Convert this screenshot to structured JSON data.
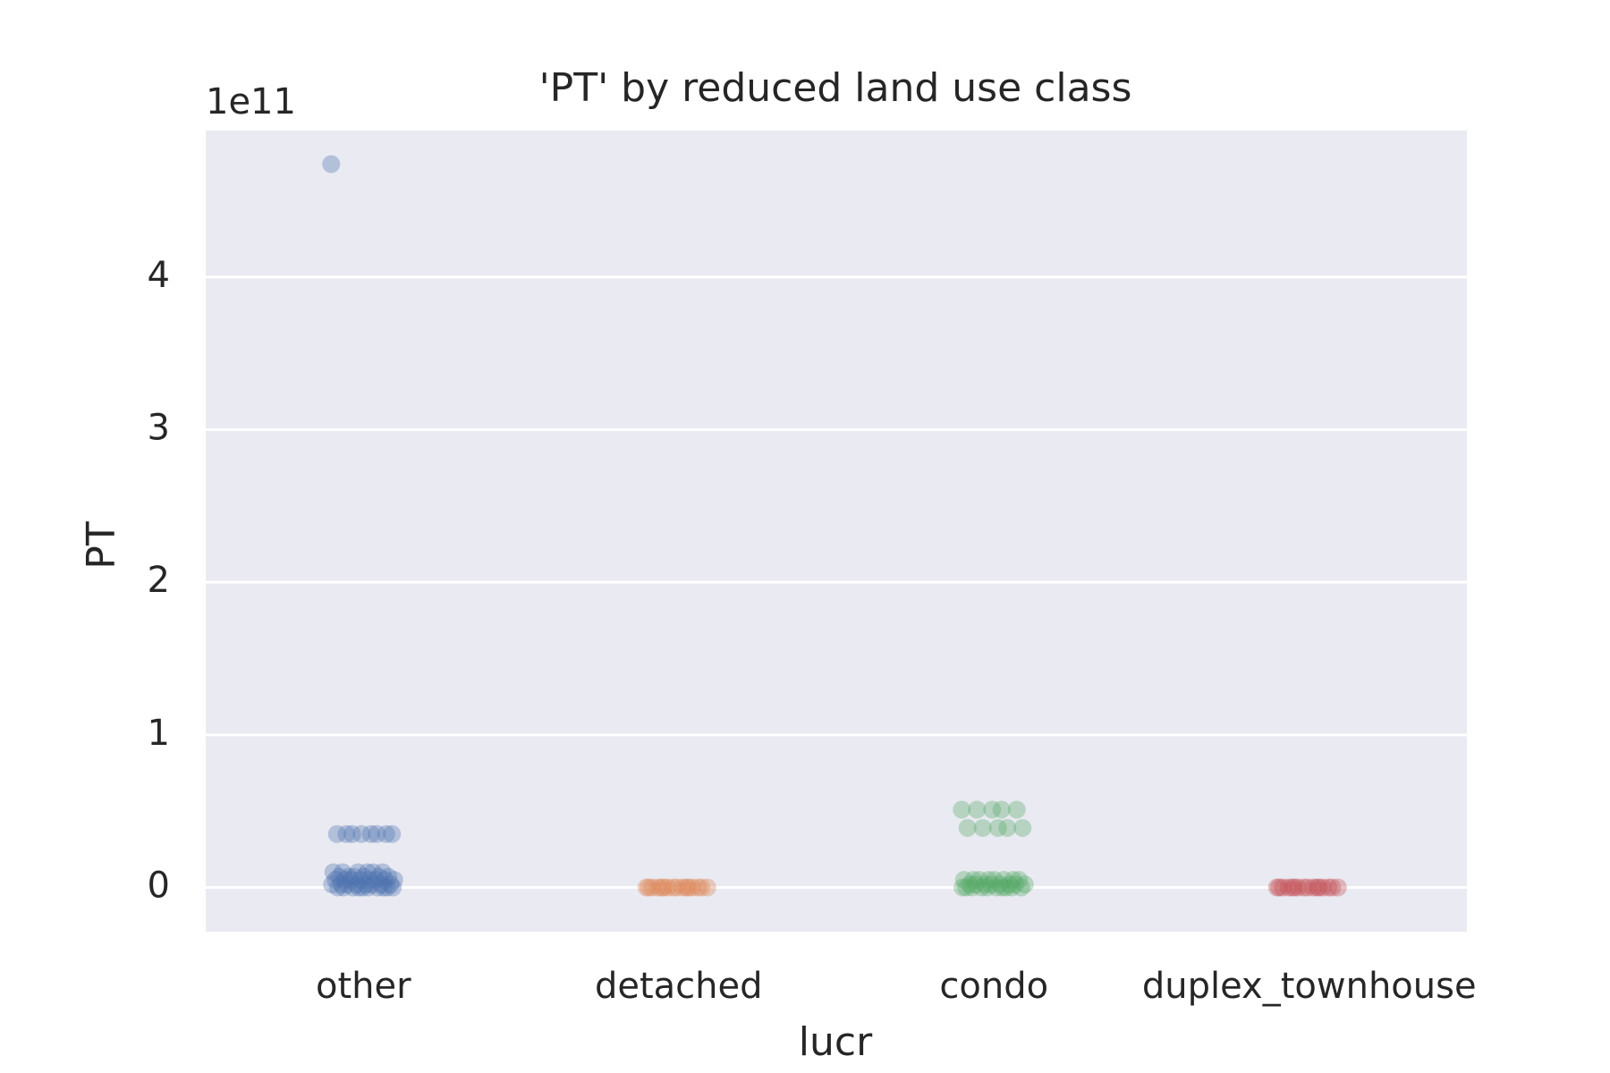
{
  "chart_data": {
    "type": "strip",
    "title": "'PT' by reduced land use class",
    "x_label": "lucr",
    "y_label": "PT",
    "y_offset_label": "1e11",
    "categories": [
      "other",
      "detached",
      "condo",
      "duplex_townhouse"
    ],
    "colors": [
      "#4c72b0",
      "#dd8452",
      "#55a868",
      "#c44e52"
    ],
    "values": [
      [
        4.74,
        0.35,
        0.35,
        0.35,
        0.35,
        0.35,
        0.35,
        0.35,
        0.35,
        0.1,
        0.1,
        0.1,
        0.1,
        0.1,
        0.1,
        0.07,
        0.07,
        0.07,
        0.07,
        0.07,
        0.07,
        0.05,
        0.05,
        0.05,
        0.05,
        0.05,
        0.05,
        0.05,
        0.05,
        0.02,
        0.02,
        0.02,
        0.02,
        0.02,
        0.02,
        0.02,
        0.02,
        0,
        0,
        0,
        0,
        0,
        0,
        0,
        0,
        0,
        0
      ],
      [
        0,
        0,
        0,
        0,
        0,
        0,
        0,
        0,
        0,
        0,
        0,
        0,
        0,
        0,
        0,
        0
      ],
      [
        0.51,
        0.51,
        0.51,
        0.51,
        0.51,
        0.39,
        0.39,
        0.39,
        0.39,
        0.39,
        0.05,
        0.05,
        0.05,
        0.05,
        0.05,
        0.05,
        0.05,
        0.05,
        0.02,
        0.02,
        0.02,
        0.02,
        0.02,
        0.02,
        0.02,
        0.02,
        0,
        0,
        0,
        0,
        0,
        0,
        0,
        0,
        0,
        0
      ],
      [
        0,
        0,
        0,
        0,
        0,
        0,
        0,
        0,
        0,
        0,
        0,
        0,
        0,
        0,
        0,
        0
      ]
    ],
    "ylim": [
      -0.29,
      4.96
    ],
    "yticks": [
      0,
      1,
      2,
      3,
      4
    ],
    "grid": true,
    "point_opacity": 0.35
  }
}
